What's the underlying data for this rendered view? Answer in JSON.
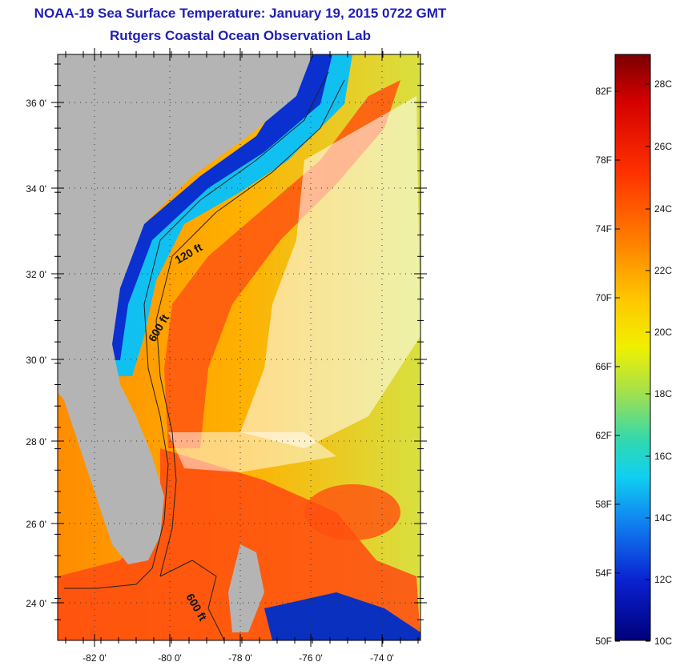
{
  "header": {
    "title": "NOAA-19 Sea Surface Temperature:  January 19, 2015 0722 GMT",
    "subtitle": "Rutgers Coastal Ocean Observation Lab"
  },
  "map": {
    "lat_labels": [
      "36 0'",
      "34 0'",
      "32 0'",
      "30 0'",
      "28 0'",
      "26 0'",
      "24 0'"
    ],
    "lon_labels": [
      "-82 0'",
      "-80 0'",
      "-78 0'",
      "-76 0'",
      "-74 0'"
    ],
    "contour_labels": [
      "120 ft",
      "600 ft",
      "600 ft"
    ]
  },
  "colorbar": {
    "fahrenheit_labels": [
      "82F",
      "78F",
      "74F",
      "70F",
      "66F",
      "62F",
      "58F",
      "54F",
      "50F"
    ],
    "celsius_labels": [
      "28C",
      "26C",
      "24C",
      "22C",
      "20C",
      "18C",
      "16C",
      "14C",
      "12C",
      "10C"
    ],
    "colors": [
      "#8b0000",
      "#e01010",
      "#ff4a00",
      "#ff8c00",
      "#ffc400",
      "#f0f000",
      "#a8e040",
      "#40d0a0",
      "#10d0e8",
      "#1090f0",
      "#1040e0",
      "#0a10b0",
      "#00007a"
    ]
  },
  "colors": {
    "land": "#b4b4b4",
    "title": "#1f1fb4",
    "cloud": "#ffffff"
  }
}
